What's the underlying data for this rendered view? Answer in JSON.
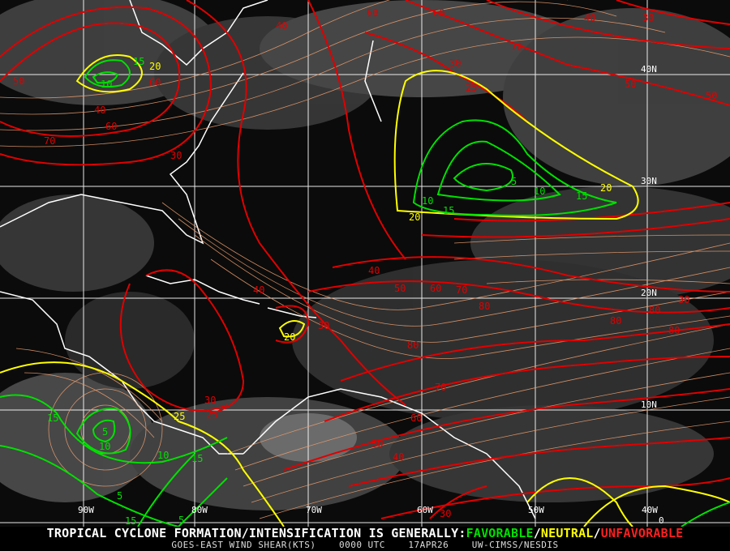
{
  "product": {
    "headline": "TROPICAL CYCLONE FORMATION/INTENSIFICATION IS GENERALLY:",
    "favorable": "FAVORABLE",
    "neutral": "NEUTRAL",
    "unfavorable": "UNFAVORABLE",
    "separator": "/",
    "subtitle": "GOES-EAST WIND SHEAR(KTS)    0000 UTC    17APR26    UW-CIMSS/NESDIS"
  },
  "colors": {
    "favorable": "#00e000",
    "neutral": "#ffff00",
    "unfavorable": "#e00000",
    "streamline": "#f0a070",
    "grid": "#ffffff",
    "coastline": "#ffffff"
  },
  "longitude_labels": [
    "90W",
    "80W",
    "70W",
    "60W",
    "50W",
    "40W"
  ],
  "latitude_labels": [
    "40N",
    "30N",
    "20N",
    "10N",
    "0"
  ],
  "contour_labels": {
    "red": [
      "40",
      "60",
      "60",
      "40",
      "30",
      "50",
      "60",
      "70",
      "50",
      "30",
      "40",
      "70",
      "30",
      "60",
      "25",
      "50",
      "40",
      "50",
      "60",
      "70",
      "80",
      "80",
      "30",
      "80",
      "80",
      "80",
      "70",
      "60",
      "50",
      "40",
      "30",
      "30",
      "25",
      "40",
      "30"
    ],
    "yellow": [
      "20",
      "20",
      "20",
      "20",
      "25"
    ],
    "green": [
      "15",
      "10",
      "5",
      "10",
      "15",
      "10",
      "15",
      "15",
      "5",
      "10",
      "15",
      "10",
      "5",
      "15",
      "5"
    ]
  }
}
